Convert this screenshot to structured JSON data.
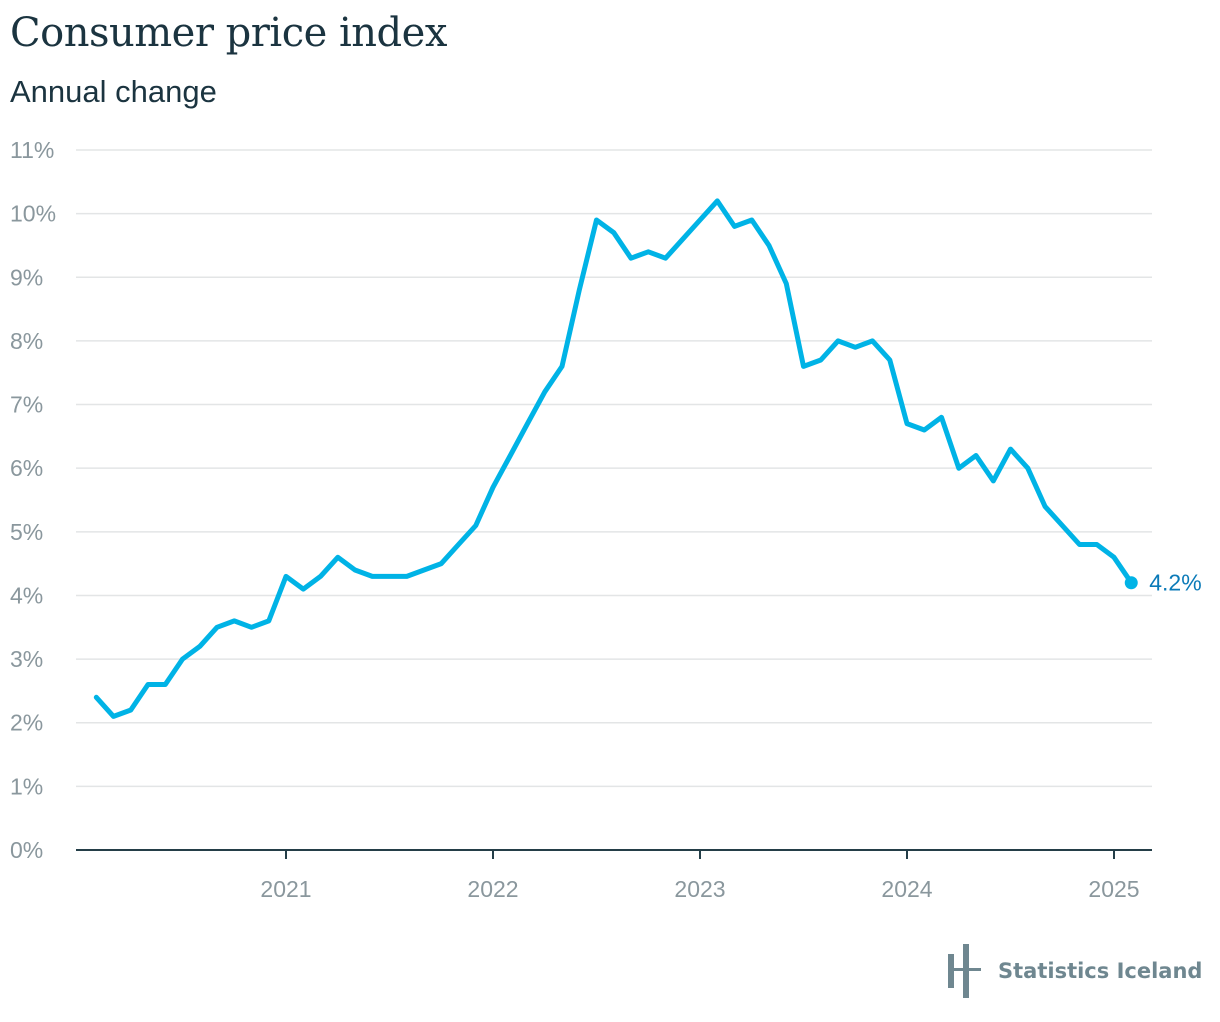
{
  "header": {
    "title": "Consumer price index",
    "subtitle": "Annual change"
  },
  "logo": {
    "text": "Statistics Iceland"
  },
  "colors": {
    "line": "#00b3e6",
    "label": "#0a7ab8",
    "grid": "#e3e5e6",
    "tick": "#8a979d"
  },
  "chart_data": {
    "type": "line",
    "title": "Consumer price index",
    "subtitle": "Annual change",
    "xlabel": "",
    "ylabel": "",
    "ylim": [
      0,
      11
    ],
    "yticks": [
      "0%",
      "1%",
      "2%",
      "3%",
      "4%",
      "5%",
      "6%",
      "7%",
      "8%",
      "9%",
      "10%",
      "11%"
    ],
    "xticks": [
      "2021",
      "2022",
      "2023",
      "2024",
      "2025"
    ],
    "x_start": "2020-02",
    "frequency": "monthly",
    "grid": true,
    "end_label": "4.2%",
    "series": [
      {
        "name": "Annual change",
        "values": [
          2.4,
          2.1,
          2.2,
          2.6,
          2.6,
          3.0,
          3.2,
          3.5,
          3.6,
          3.5,
          3.6,
          4.3,
          4.1,
          4.3,
          4.6,
          4.4,
          4.3,
          4.3,
          4.3,
          4.4,
          4.5,
          4.8,
          5.1,
          5.7,
          6.2,
          6.7,
          7.2,
          7.6,
          8.8,
          9.9,
          9.7,
          9.3,
          9.4,
          9.3,
          9.6,
          9.9,
          10.2,
          9.8,
          9.9,
          9.5,
          8.9,
          7.6,
          7.7,
          8.0,
          7.9,
          8.0,
          7.7,
          6.7,
          6.6,
          6.8,
          6.0,
          6.2,
          5.8,
          6.3,
          6.0,
          5.4,
          5.1,
          4.8,
          4.8,
          4.6,
          4.2
        ]
      }
    ]
  }
}
